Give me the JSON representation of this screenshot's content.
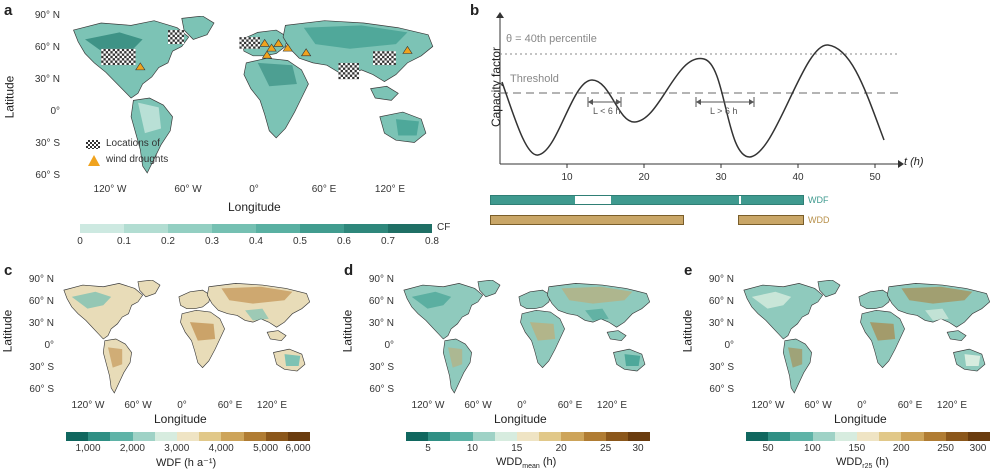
{
  "panels": {
    "a": {
      "letter": "a",
      "xlabel": "Longitude",
      "ylabel": "Latitude",
      "lat_ticks": [
        "90° N",
        "60° N",
        "30° N",
        "0°",
        "30° S",
        "60° S"
      ],
      "lon_ticks": [
        "120° W",
        "60° W",
        "0°",
        "60° E",
        "120° E"
      ],
      "legend_line1": "Locations of",
      "legend_line2": "wind droughts",
      "colorbar_label": "CF",
      "colorbar_ticks": [
        "0",
        "0.1",
        "0.2",
        "0.3",
        "0.4",
        "0.5",
        "0.6",
        "0.7",
        "0.8"
      ],
      "colorbar_colors": [
        "#cde9e1",
        "#b2ddd2",
        "#93cfc2",
        "#75c0b2",
        "#59b0a2",
        "#419c8f",
        "#2e877b",
        "#1f6f65"
      ]
    },
    "b": {
      "letter": "b",
      "ylabel": "Capacity factor",
      "xlabel": "t (h)",
      "x_ticks": [
        "10",
        "20",
        "30",
        "40",
        "50"
      ],
      "theta_label": "θ = 40th percentile",
      "threshold_label": "Threshold",
      "bracket_short": "L < 6 h",
      "bracket_long": "L > 6 h",
      "wdf_label": "WDF",
      "wdd_label": "WDD",
      "wdf_color": "#3f9a8f",
      "wdd_color": "#c9a667"
    },
    "c": {
      "letter": "c",
      "xlabel": "Longitude",
      "ylabel": "Latitude",
      "lat_ticks": [
        "90° N",
        "60° N",
        "30° N",
        "0°",
        "30° S",
        "60° S"
      ],
      "lon_ticks": [
        "120° W",
        "60° W",
        "0°",
        "60° E",
        "120° E"
      ],
      "colorbar_label": "WDF (h a⁻¹)",
      "colorbar_ticks": [
        "1,000",
        "2,000",
        "3,000",
        "4,000",
        "5,000",
        "6,000"
      ],
      "colorbar_colors": [
        "#10675f",
        "#2f8f84",
        "#5fb3a7",
        "#9fd2c6",
        "#d7ecdf",
        "#efe4c4",
        "#e1c889",
        "#cda45a",
        "#b07c33",
        "#8b571b",
        "#6a3c0e"
      ]
    },
    "d": {
      "letter": "d",
      "xlabel": "Longitude",
      "ylabel": "Latitude",
      "lat_ticks": [
        "90° N",
        "60° N",
        "30° N",
        "0°",
        "30° S",
        "60° S"
      ],
      "lon_ticks": [
        "120° W",
        "60° W",
        "0°",
        "60° E",
        "120° E"
      ],
      "colorbar_label": "WDDmean (h)",
      "colorbar_label_main": "WDD",
      "colorbar_label_sub": "mean",
      "colorbar_label_unit": " (h)",
      "colorbar_ticks": [
        "5",
        "10",
        "15",
        "20",
        "25",
        "30"
      ],
      "colorbar_colors": [
        "#10675f",
        "#2f8f84",
        "#5fb3a7",
        "#9fd2c6",
        "#d7ecdf",
        "#efe4c4",
        "#e1c889",
        "#cda45a",
        "#b07c33",
        "#8b571b",
        "#6a3c0e"
      ]
    },
    "e": {
      "letter": "e",
      "xlabel": "Longitude",
      "ylabel": "Latitude",
      "lat_ticks": [
        "90° N",
        "60° N",
        "30° N",
        "0°",
        "30° S",
        "60° S"
      ],
      "lon_ticks": [
        "120° W",
        "60° W",
        "0°",
        "60° E",
        "120° E"
      ],
      "colorbar_label": "WDDr25 (h)",
      "colorbar_label_main": "WDD",
      "colorbar_label_sub": "r25",
      "colorbar_label_unit": " (h)",
      "colorbar_ticks": [
        "50",
        "100",
        "150",
        "200",
        "250",
        "300"
      ],
      "colorbar_colors": [
        "#10675f",
        "#2f8f84",
        "#5fb3a7",
        "#9fd2c6",
        "#d7ecdf",
        "#efe4c4",
        "#e1c889",
        "#cda45a",
        "#b07c33",
        "#8b571b",
        "#6a3c0e"
      ]
    }
  }
}
